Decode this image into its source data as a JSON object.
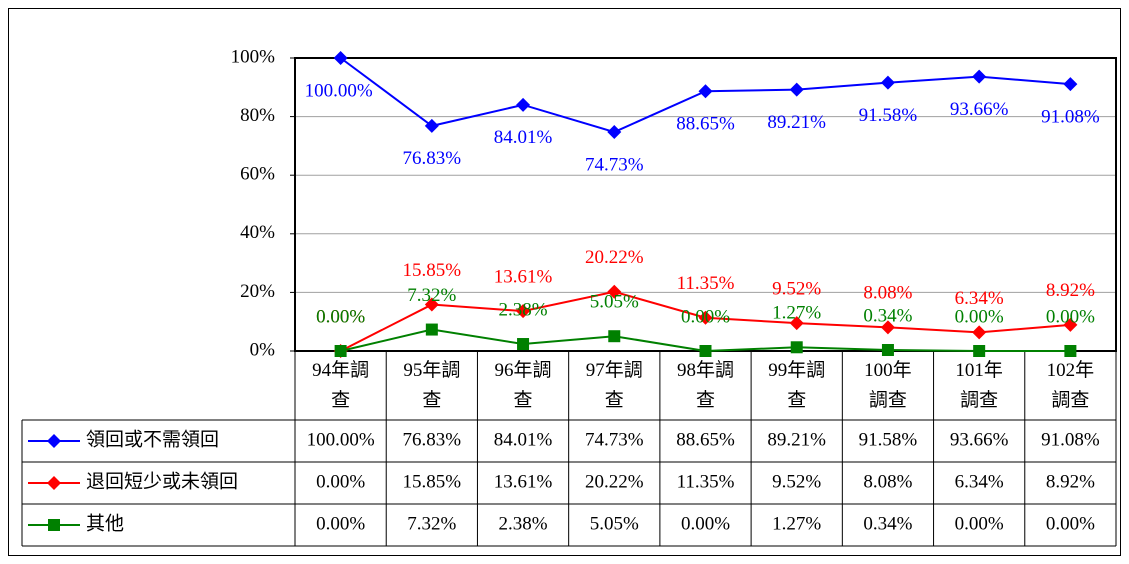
{
  "chart_data": {
    "type": "line",
    "categories": [
      "94年調查",
      "95年調查",
      "96年調查",
      "97年調查",
      "98年調查",
      "99年調查",
      "100年調查",
      "101年調查",
      "102年調查"
    ],
    "series": [
      {
        "name": "領回或不需領回",
        "color": "#0000ff",
        "marker": "diamond",
        "values": [
          100.0,
          76.83,
          84.01,
          74.73,
          88.65,
          89.21,
          91.58,
          93.66,
          91.08
        ],
        "value_labels": [
          "100.00%",
          "76.83%",
          "84.01%",
          "74.73%",
          "88.65%",
          "89.21%",
          "91.58%",
          "93.66%",
          "91.08%"
        ]
      },
      {
        "name": "退回短少或未領回",
        "color": "#ff0000",
        "marker": "diamond",
        "values": [
          0.0,
          15.85,
          13.61,
          20.22,
          11.35,
          9.52,
          8.08,
          6.34,
          8.92
        ],
        "value_labels": [
          "0.00%",
          "15.85%",
          "13.61%",
          "20.22%",
          "11.35%",
          "9.52%",
          "8.08%",
          "6.34%",
          "8.92%"
        ]
      },
      {
        "name": "其他",
        "color": "#008000",
        "marker": "square",
        "values": [
          0.0,
          7.32,
          2.38,
          5.05,
          0.0,
          1.27,
          0.34,
          0.0,
          0.0
        ],
        "value_labels": [
          "0.00%",
          "7.32%",
          "2.38%",
          "5.05%",
          "0.00%",
          "1.27%",
          "0.34%",
          "0.00%",
          "0.00%"
        ]
      }
    ],
    "ylim": [
      0,
      100
    ],
    "yticks": [
      {
        "value": 0,
        "label": "0%"
      },
      {
        "value": 20,
        "label": "20%"
      },
      {
        "value": 40,
        "label": "40%"
      },
      {
        "value": 60,
        "label": "60%"
      },
      {
        "value": 80,
        "label": "80%"
      },
      {
        "value": 100,
        "label": "100%"
      }
    ],
    "grid": true
  }
}
